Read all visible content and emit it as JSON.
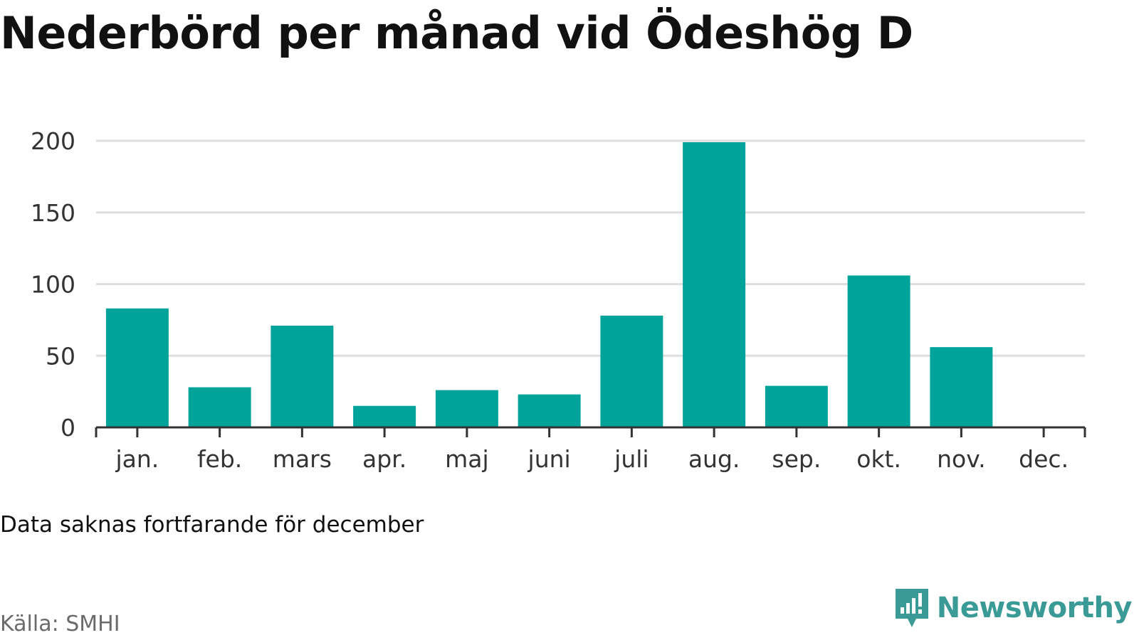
{
  "title": "Nederbörd per månad vid Ödeshög D",
  "note": "Data saknas fortfarande för december",
  "source": "Källa: SMHI",
  "brand": {
    "name": "Newsworthy",
    "icon": "newsworthy-logo-icon"
  },
  "colors": {
    "bar": "#00a39a",
    "grid": "#dedede",
    "axis": "#333333",
    "brand": "#3a9a96"
  },
  "chart_data": {
    "type": "bar",
    "categories": [
      "jan.",
      "feb.",
      "mars",
      "apr.",
      "maj",
      "juni",
      "juli",
      "aug.",
      "sep.",
      "okt.",
      "nov.",
      "dec."
    ],
    "values": [
      83,
      28,
      71,
      15,
      26,
      23,
      78,
      199,
      29,
      106,
      56,
      null
    ],
    "ylim": [
      0,
      200
    ],
    "yticks": [
      0,
      50,
      100,
      150,
      200
    ],
    "grid": true,
    "title": "Nederbörd per månad vid Ödeshög D"
  }
}
